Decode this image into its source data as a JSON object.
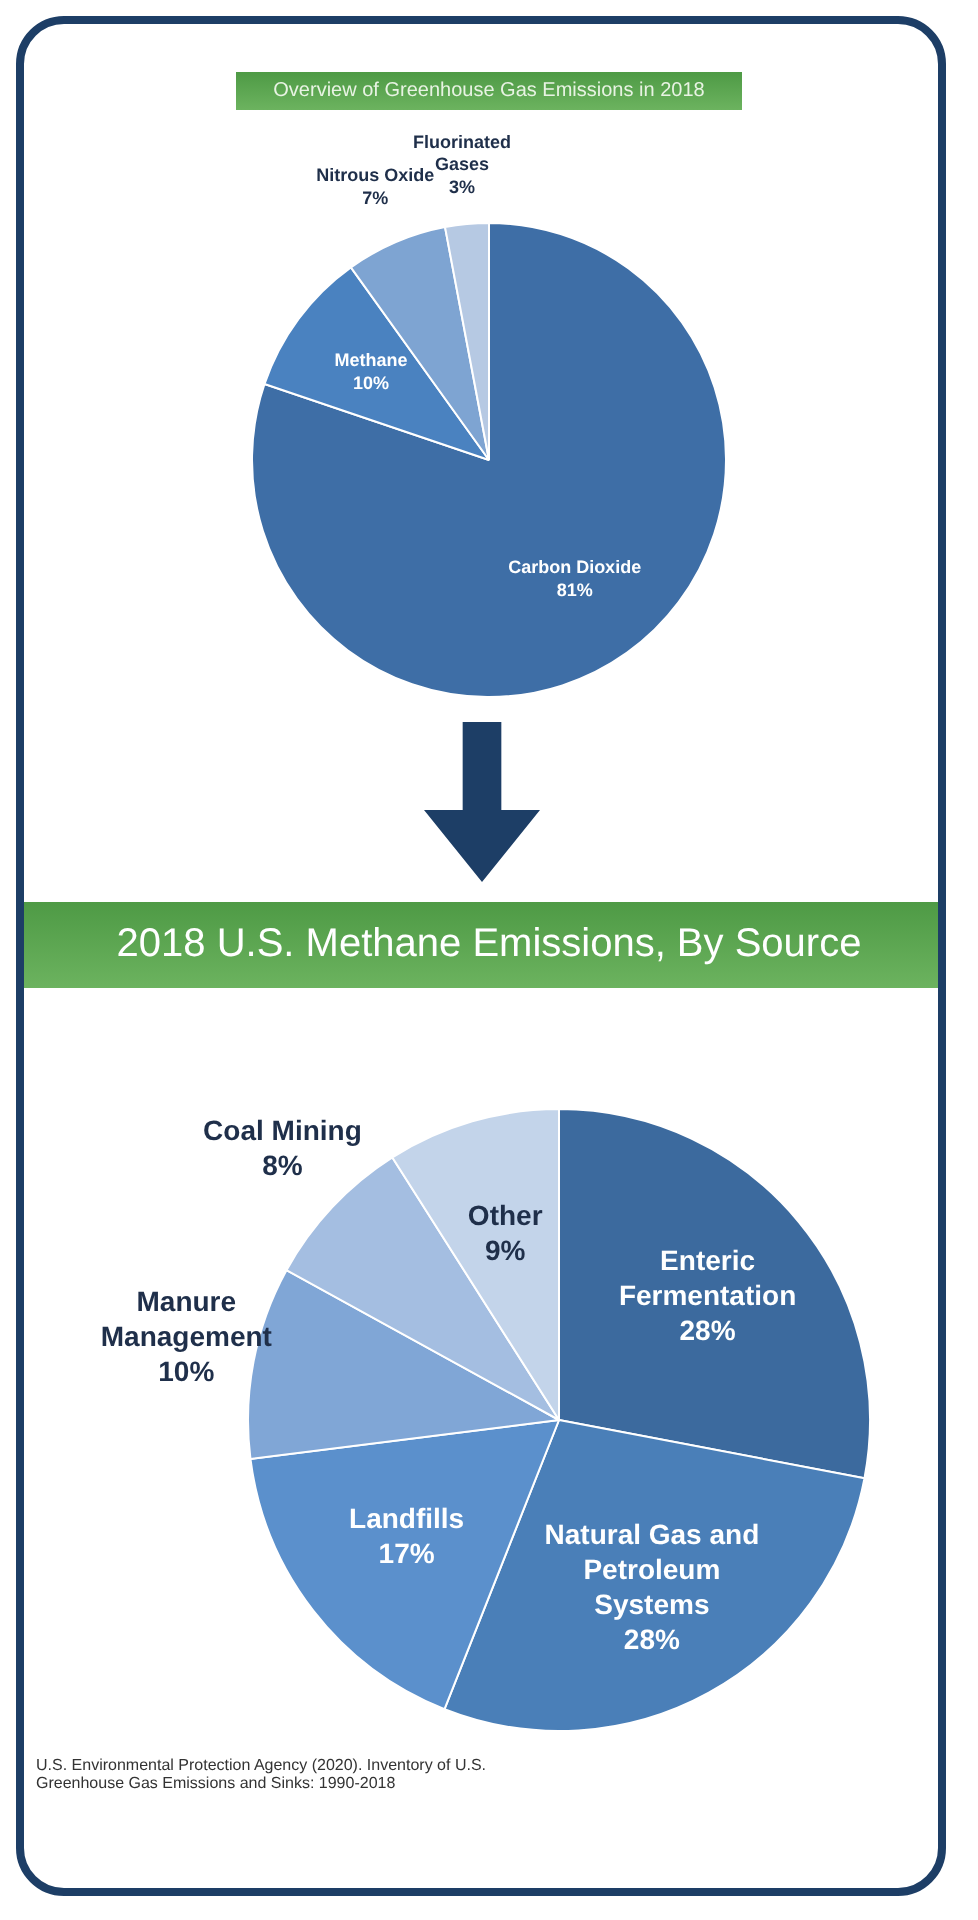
{
  "chart_data": [
    {
      "type": "pie",
      "title": "Overview of Greenhouse Gas Emissions in 2018",
      "categories": [
        "Carbon Dioxide",
        "Methane",
        "Nitrous Oxide",
        "Fluorinated Gases"
      ],
      "values": [
        81,
        10,
        7,
        3
      ],
      "colors": [
        "#3e6ea6",
        "#4a82c0",
        "#7ea4d2",
        "#b6c9e3"
      ],
      "value_labels": [
        "81%",
        "10%",
        "7%",
        "3%"
      ],
      "legend": false
    },
    {
      "type": "pie",
      "title": "2018 U.S. Methane Emissions, By Source",
      "categories": [
        "Enteric Fermentation",
        "Natural Gas and Petroleum Systems",
        "Landfills",
        "Manure Management",
        "Coal Mining",
        "Other"
      ],
      "values": [
        28,
        28,
        17,
        10,
        8,
        9
      ],
      "colors": [
        "#3c6a9e",
        "#4a7fb8",
        "#5b90cc",
        "#80a6d6",
        "#a4bee1",
        "#c3d4ea"
      ],
      "value_labels": [
        "28%",
        "28%",
        "17%",
        "10%",
        "8%",
        "9%"
      ],
      "legend": false,
      "annotations": [
        "U.S. Environmental Protection Agency (2020). Inventory of U.S. Greenhouse Gas Emissions and Sinks: 1990-2018"
      ]
    }
  ]
}
